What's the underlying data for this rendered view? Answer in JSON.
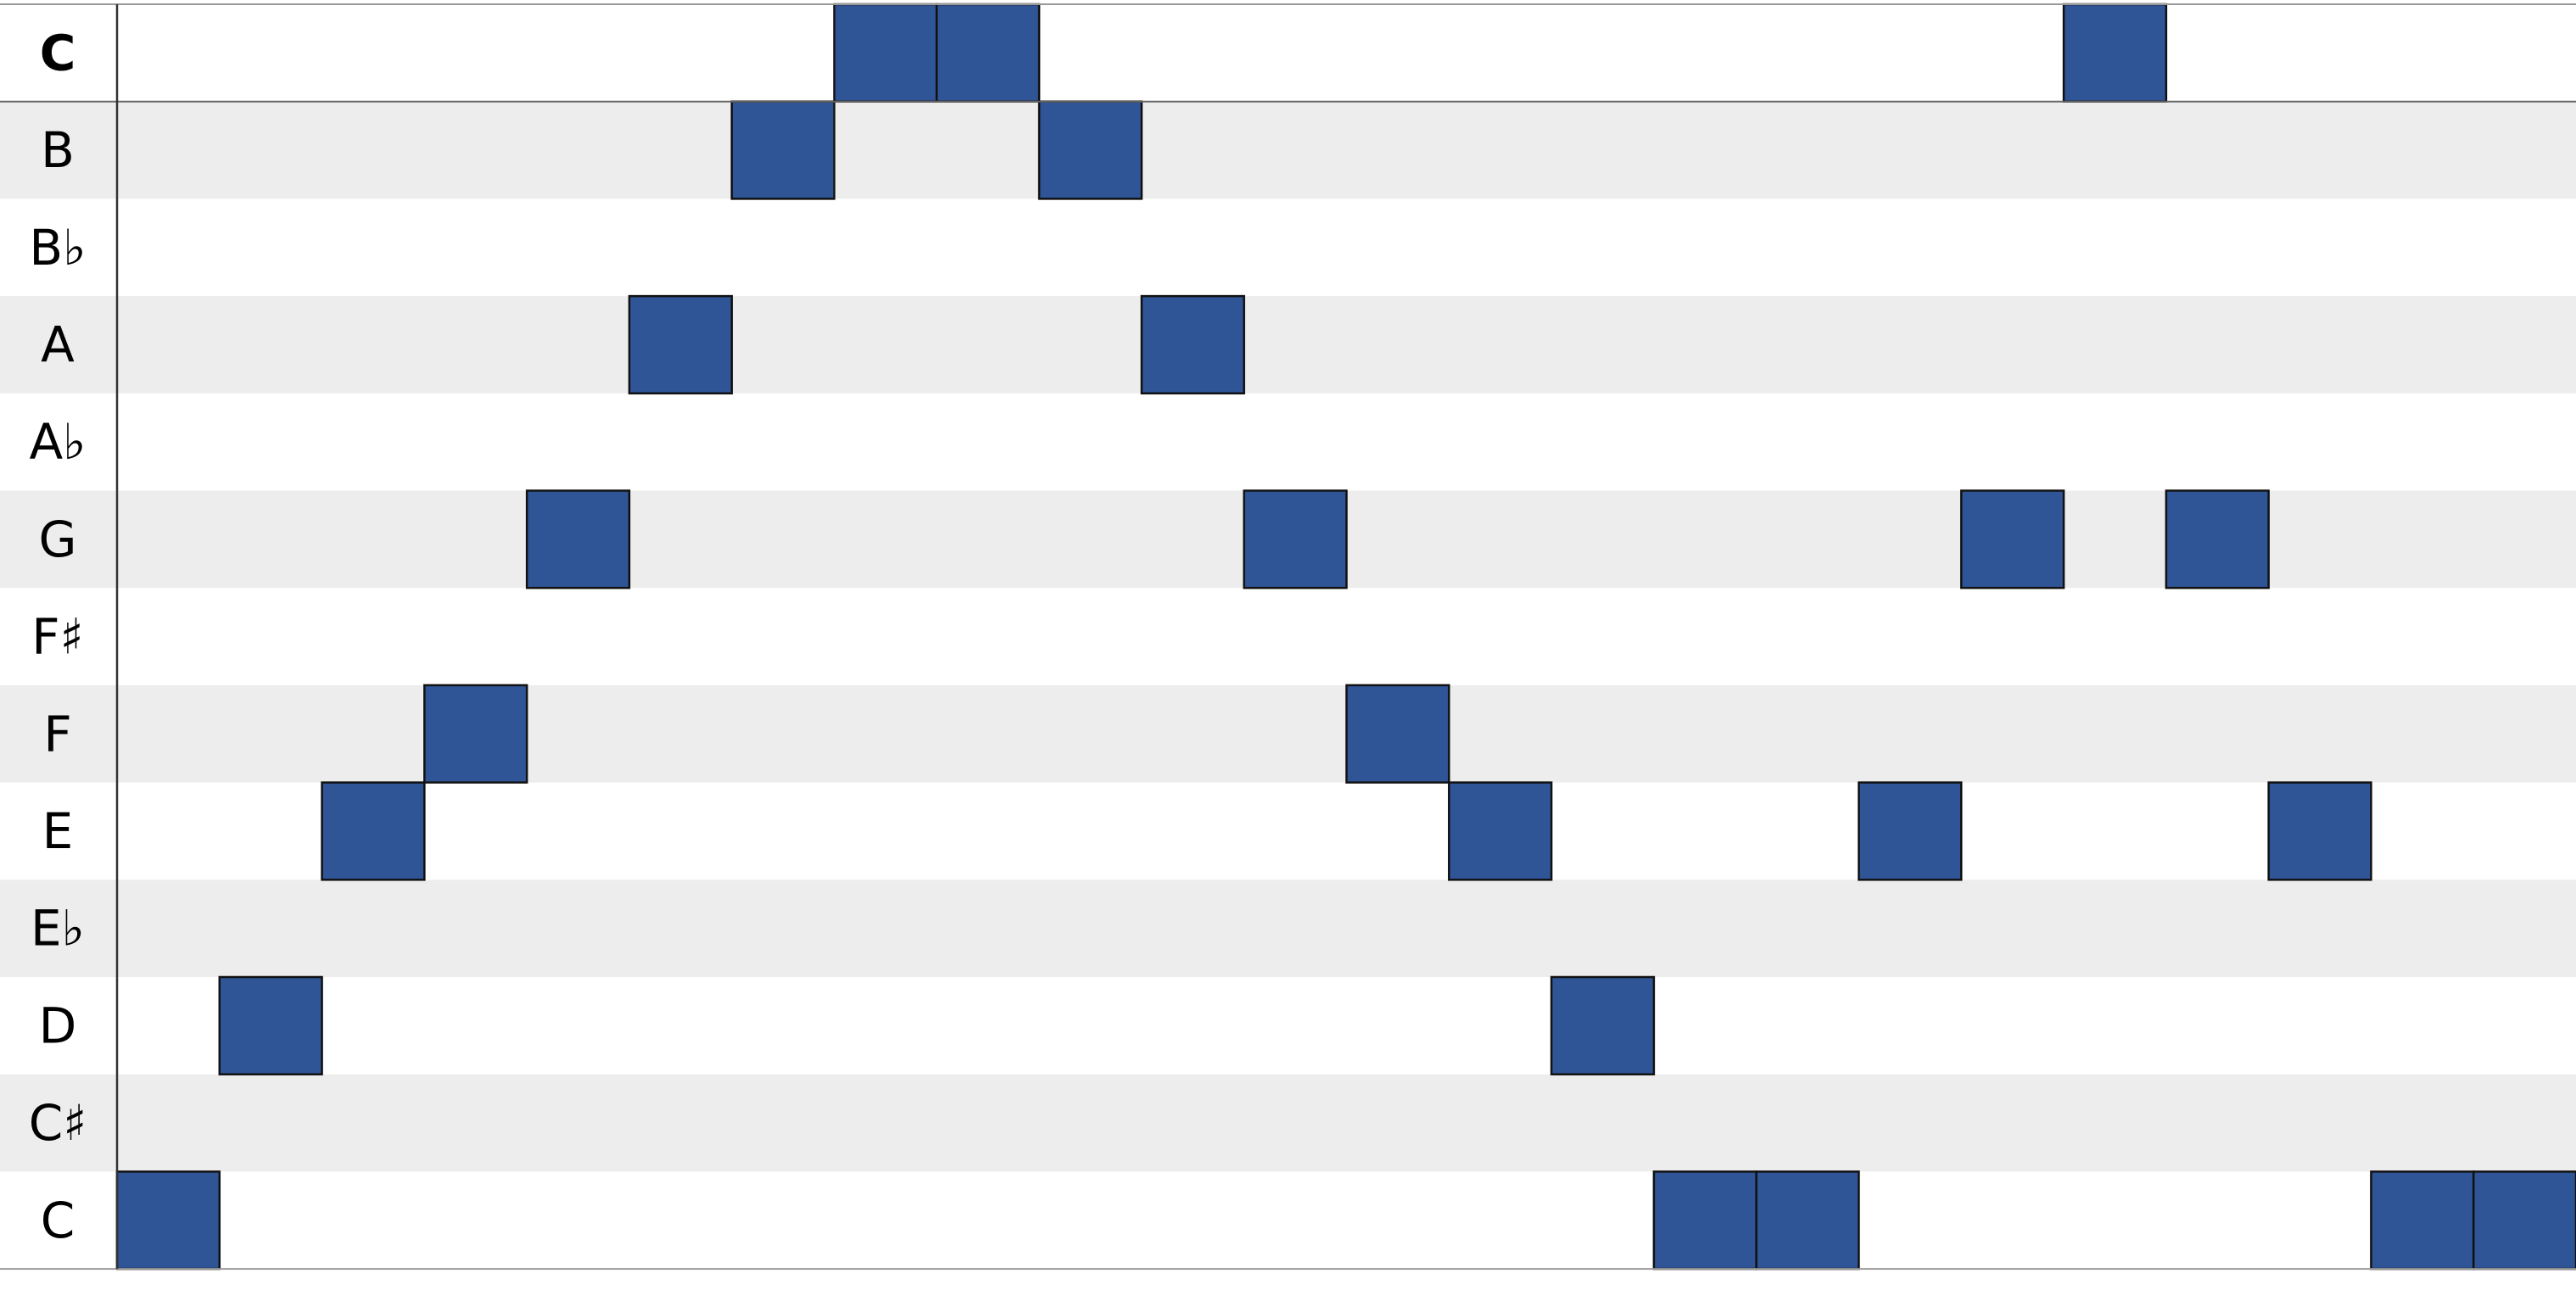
{
  "chart_data": {
    "type": "heatmap",
    "rows": [
      {
        "label": "C",
        "bold": true
      },
      {
        "label": "B",
        "bold": false
      },
      {
        "label": "B♭",
        "bold": false
      },
      {
        "label": "A",
        "bold": false
      },
      {
        "label": "A♭",
        "bold": false
      },
      {
        "label": "G",
        "bold": false
      },
      {
        "label": "F♯",
        "bold": false
      },
      {
        "label": "F",
        "bold": false
      },
      {
        "label": "E",
        "bold": false
      },
      {
        "label": "E♭",
        "bold": false
      },
      {
        "label": "D",
        "bold": false
      },
      {
        "label": "C♯",
        "bold": false
      },
      {
        "label": "C",
        "bold": false
      }
    ],
    "steps": 24,
    "sequence": [
      "C",
      "D",
      "E",
      "F",
      "G",
      "A",
      "B",
      "C",
      "C",
      "B",
      "A",
      "G",
      "F",
      "E",
      "D",
      "C",
      "C",
      "E",
      "G",
      "C",
      "G",
      "E",
      "C",
      "C"
    ],
    "sequence_row_index": [
      12,
      10,
      8,
      7,
      5,
      3,
      1,
      0,
      0,
      1,
      3,
      5,
      7,
      8,
      10,
      12,
      12,
      8,
      5,
      0,
      5,
      8,
      12,
      12
    ],
    "cell_color": "#2f5597",
    "stripe_color": "#ededed"
  }
}
